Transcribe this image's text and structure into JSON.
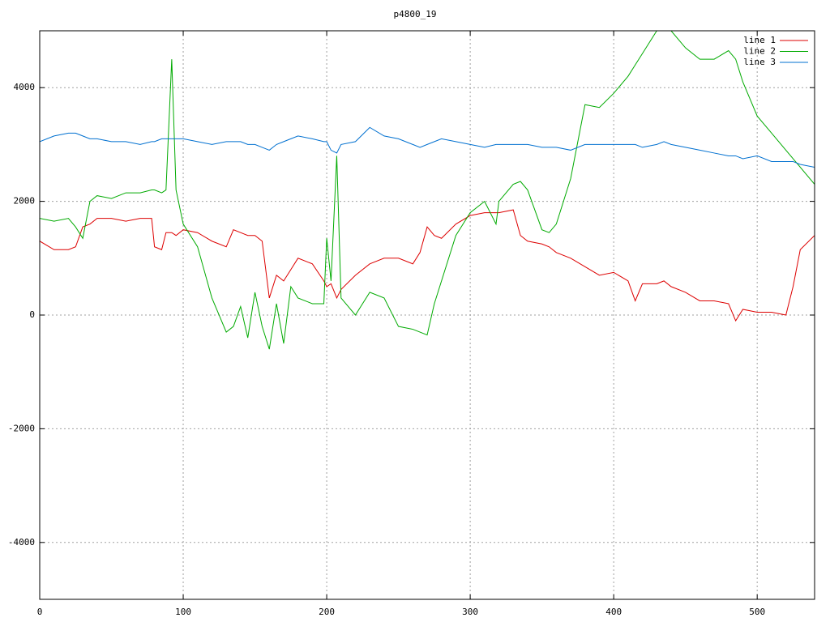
{
  "chart_data": {
    "type": "line",
    "title": "p4800_19",
    "x": [
      0,
      10,
      20,
      25,
      30,
      35,
      40,
      50,
      60,
      70,
      78,
      80,
      85,
      88,
      92,
      95,
      100,
      110,
      120,
      130,
      135,
      140,
      145,
      150,
      155,
      160,
      165,
      170,
      175,
      180,
      190,
      198,
      200,
      203,
      207,
      210,
      220,
      230,
      240,
      250,
      260,
      265,
      270,
      275,
      280,
      290,
      300,
      310,
      318,
      320,
      330,
      335,
      340,
      350,
      355,
      360,
      370,
      380,
      390,
      400,
      410,
      415,
      420,
      430,
      435,
      440,
      450,
      460,
      470,
      480,
      485,
      490,
      500,
      510,
      520,
      525,
      530,
      540
    ],
    "series": [
      {
        "name": "line 1",
        "color": "#dd0000",
        "values": [
          1300,
          1150,
          1150,
          1200,
          1550,
          1600,
          1700,
          1700,
          1650,
          1700,
          1700,
          1200,
          1150,
          1450,
          1450,
          1400,
          1500,
          1450,
          1300,
          1200,
          1500,
          1450,
          1400,
          1400,
          1300,
          300,
          700,
          600,
          800,
          1000,
          900,
          600,
          500,
          550,
          300,
          450,
          700,
          900,
          1000,
          1000,
          900,
          1100,
          1550,
          1400,
          1350,
          1600,
          1750,
          1800,
          1800,
          1800,
          1850,
          1400,
          1300,
          1250,
          1200,
          1100,
          1000,
          850,
          700,
          750,
          600,
          250,
          550,
          550,
          600,
          500,
          400,
          250,
          250,
          200,
          -100,
          100,
          50,
          50,
          0,
          500,
          1150,
          1400
        ]
      },
      {
        "name": "line 2",
        "color": "#00aa00",
        "values": [
          1700,
          1650,
          1700,
          1550,
          1350,
          2000,
          2100,
          2050,
          2150,
          2150,
          2200,
          2200,
          2150,
          2200,
          4500,
          2200,
          1600,
          1200,
          300,
          -300,
          -200,
          150,
          -400,
          400,
          -200,
          -600,
          200,
          -500,
          500,
          300,
          200,
          200,
          1350,
          600,
          2800,
          300,
          0,
          400,
          300,
          -200,
          -250,
          -300,
          -350,
          200,
          600,
          1400,
          1800,
          2000,
          1600,
          2000,
          2300,
          2350,
          2200,
          1500,
          1450,
          1600,
          2400,
          3700,
          3650,
          3900,
          4200,
          4400,
          4600,
          5000,
          5000,
          5000,
          4700,
          4500,
          4500,
          4650,
          4500,
          4100,
          3500,
          3200,
          2900,
          2750,
          2600,
          2300
        ]
      },
      {
        "name": "line 3",
        "color": "#0070d0",
        "values": [
          3050,
          3150,
          3200,
          3200,
          3150,
          3100,
          3100,
          3050,
          3050,
          3000,
          3050,
          3050,
          3100,
          3100,
          3100,
          3100,
          3100,
          3050,
          3000,
          3050,
          3050,
          3050,
          3000,
          3000,
          2950,
          2900,
          3000,
          3050,
          3100,
          3150,
          3100,
          3050,
          3050,
          2900,
          2850,
          3000,
          3050,
          3300,
          3150,
          3100,
          3000,
          2950,
          3000,
          3050,
          3100,
          3050,
          3000,
          2950,
          3000,
          3000,
          3000,
          3000,
          3000,
          2950,
          2950,
          2950,
          2900,
          3000,
          3000,
          3000,
          3000,
          3000,
          2950,
          3000,
          3050,
          3000,
          2950,
          2900,
          2850,
          2800,
          2800,
          2750,
          2800,
          2700,
          2700,
          2700,
          2650,
          2600
        ]
      }
    ],
    "xlim": [
      0,
      540
    ],
    "xticks": [
      0,
      100,
      200,
      300,
      400,
      500
    ],
    "ylim": [
      -5000,
      5000
    ],
    "yticks": [
      -4000,
      -2000,
      0,
      2000,
      4000
    ],
    "grid": true,
    "legend": "top-right"
  }
}
